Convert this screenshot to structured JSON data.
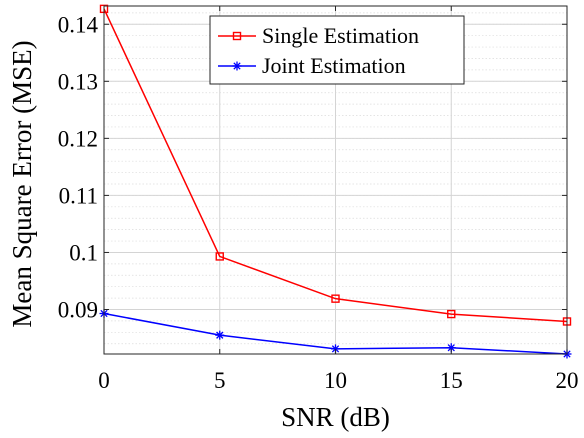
{
  "chart_data": {
    "type": "line",
    "xlabel": "SNR (dB)",
    "ylabel": "Mean Square Error (MSE)",
    "x": [
      0,
      5,
      10,
      15,
      20
    ],
    "xlim": [
      0,
      20
    ],
    "ylim": [
      0.0822,
      0.1432
    ],
    "xticks": [
      0,
      5,
      10,
      15,
      20
    ],
    "xtick_labels": [
      "0",
      "5",
      "10",
      "15",
      "20"
    ],
    "yticks": [
      0.09,
      0.1,
      0.11,
      0.12,
      0.13,
      0.14
    ],
    "ytick_labels": [
      "0.09",
      "0.1",
      "0.11",
      "0.12",
      "0.13",
      "0.14"
    ],
    "grid": true,
    "legend_position": "top-right",
    "series": [
      {
        "name": "Single Estimation",
        "color": "#ff0000",
        "marker": "square",
        "values": [
          0.1427,
          0.0993,
          0.0919,
          0.0892,
          0.0879
        ]
      },
      {
        "name": "Joint Estimation",
        "color": "#0000ff",
        "marker": "star",
        "values": [
          0.0893,
          0.0855,
          0.0831,
          0.0833,
          0.0822
        ]
      }
    ]
  }
}
